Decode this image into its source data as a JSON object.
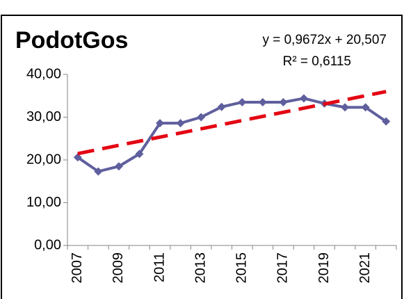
{
  "chart_data": {
    "type": "line",
    "title": "PodotGos",
    "categories": [
      "2007",
      null,
      "2009",
      null,
      "2011",
      null,
      "2013",
      null,
      "2015",
      null,
      "2017",
      null,
      "2019",
      null,
      "2021",
      null
    ],
    "series": [
      {
        "name": "PodotGos",
        "color": "#5f5f9e",
        "values": [
          20.6,
          17.3,
          18.5,
          21.4,
          28.6,
          28.6,
          30.0,
          32.4,
          33.5,
          33.5,
          33.5,
          34.4,
          33.2,
          32.3,
          32.3,
          29.0
        ]
      }
    ],
    "trendline": {
      "type": "linear",
      "color": "#e30613",
      "slope": 0.9672,
      "intercept": 20.507,
      "equation": "y = 0,9672x + 20,507",
      "r2": 0.6115,
      "r2_label": "R² = 0,6115"
    },
    "ylim": [
      0,
      40
    ],
    "yticks": [
      {
        "value": 0,
        "label": "0,00"
      },
      {
        "value": 10,
        "label": "10,00"
      },
      {
        "value": 20,
        "label": "20,00"
      },
      {
        "value": 30,
        "label": "30,00"
      },
      {
        "value": 40,
        "label": "40,00"
      }
    ],
    "grid": false
  }
}
